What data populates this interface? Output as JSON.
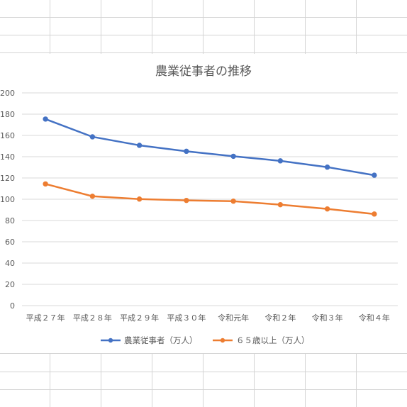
{
  "chart_data": {
    "type": "line",
    "title": "農業従事者の推移",
    "categories": [
      "平成２７年",
      "平成２８年",
      "平成２９年",
      "平成３０年",
      "令和元年",
      "令和２年",
      "令和３年",
      "令和４年"
    ],
    "series": [
      {
        "name": "農業従事者（万人）",
        "color": "#4472C4",
        "values": [
          175.4,
          158.7,
          150.7,
          145.1,
          140.4,
          136.1,
          130.2,
          122.6
        ]
      },
      {
        "name": "６５歳以上（万人）",
        "color": "#ED7D31",
        "values": [
          114.4,
          102.8,
          100.2,
          98.9,
          98.2,
          94.9,
          90.9,
          86.1
        ]
      }
    ],
    "ylim": [
      0,
      200
    ],
    "yticks": [
      0,
      20,
      40,
      60,
      80,
      100,
      120,
      140,
      160,
      180,
      200
    ],
    "grid": true,
    "legend": "bottom",
    "xlabel": "",
    "ylabel": ""
  }
}
